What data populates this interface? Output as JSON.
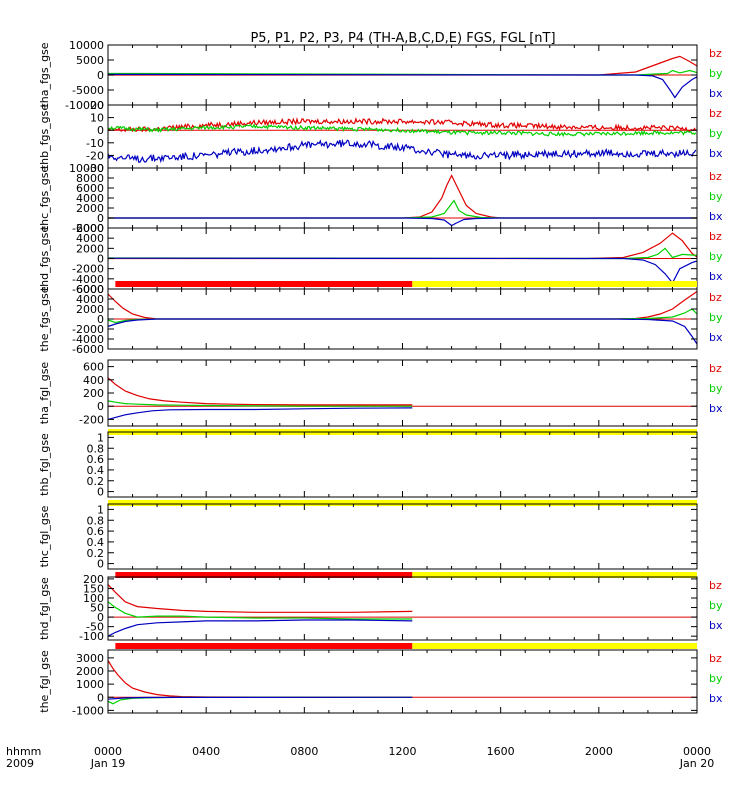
{
  "chart_data": {
    "type": "line",
    "title": "P5, P1, P2, P3, P4 (TH-A,B,C,D,E) FGS, FGL [nT]",
    "x_axis": {
      "range_hours": [
        0,
        24
      ],
      "ticks": [
        {
          "hour": 0,
          "label": "0000",
          "sublabel": "Jan 19"
        },
        {
          "hour": 4,
          "label": "0400",
          "sublabel": ""
        },
        {
          "hour": 8,
          "label": "0800",
          "sublabel": ""
        },
        {
          "hour": 12,
          "label": "1200",
          "sublabel": ""
        },
        {
          "hour": 16,
          "label": "1600",
          "sublabel": ""
        },
        {
          "hour": 20,
          "label": "2000",
          "sublabel": ""
        },
        {
          "hour": 24,
          "label": "0000",
          "sublabel": "Jan 20"
        }
      ],
      "corner_label_1": "hhmm",
      "corner_label_2": "2009"
    },
    "series_colors": {
      "bz": "#e00000",
      "by": "#00d000",
      "bx": "#0000c0"
    },
    "panels": [
      {
        "ylabel": "tha_fgs_gse",
        "ylim": [
          -10000,
          10000
        ],
        "yticks": [
          10000,
          5000,
          0,
          -5000,
          -10000
        ],
        "legend": [
          "bz",
          "by",
          "bx"
        ],
        "series": [
          {
            "name": "bz",
            "x": [
              0,
              1.4,
              20,
              21.5,
              22,
              22.5,
              23,
              23.3,
              23.7,
              24
            ],
            "y": [
              0,
              0,
              0,
              1000,
              2500,
              4000,
              5500,
              6200,
              4500,
              3000
            ]
          },
          {
            "name": "by",
            "x": [
              0,
              1.4,
              20,
              21.5,
              22.2,
              22.8,
              23,
              23.3,
              23.7,
              24
            ],
            "y": [
              500,
              500,
              0,
              0,
              300,
              500,
              1500,
              700,
              1500,
              800
            ]
          },
          {
            "name": "bx",
            "x": [
              0,
              1.4,
              20,
              21.5,
              22.2,
              22.6,
              22.9,
              23.1,
              23.4,
              23.8,
              24
            ],
            "y": [
              200,
              200,
              0,
              0,
              -300,
              -1500,
              -5000,
              -7500,
              -4000,
              -1500,
              -600
            ]
          }
        ],
        "bars": []
      },
      {
        "ylabel": "thb_fgs_gse",
        "ylim": [
          -30,
          20
        ],
        "yticks": [
          20,
          10,
          0,
          -10,
          -20,
          -30
        ],
        "legend": [
          "bz",
          "by",
          "bx"
        ],
        "series": [
          {
            "name": "bz",
            "x": [
              0,
              2,
              4,
              6,
              8,
              10,
              12,
              14,
              16,
              18,
              20,
              22,
              24
            ],
            "y": [
              0,
              1,
              4,
              6,
              7,
              7,
              7,
              6,
              4,
              3,
              2,
              2,
              1
            ],
            "noise": 2
          },
          {
            "name": "by",
            "x": [
              0,
              2,
              4,
              6,
              8,
              10,
              12,
              14,
              16,
              18,
              20,
              22,
              24
            ],
            "y": [
              2,
              0,
              2,
              3,
              2,
              1,
              0,
              -2,
              -2,
              -3,
              -3,
              -2,
              -2
            ],
            "noise": 1.5
          },
          {
            "name": "bx",
            "x": [
              0,
              1,
              2,
              4,
              6,
              8,
              10,
              12,
              14,
              16,
              18,
              20,
              22,
              24
            ],
            "y": [
              -20,
              -23,
              -22,
              -20,
              -16,
              -12,
              -10,
              -14,
              -20,
              -20,
              -19,
              -18,
              -19,
              -18
            ],
            "noise": 3
          }
        ],
        "bars": []
      },
      {
        "ylabel": "thc_fgs_gse",
        "ylim": [
          -2000,
          10000
        ],
        "yticks": [
          10000,
          8000,
          6000,
          4000,
          2000,
          0,
          -2000
        ],
        "legend": [
          "bz",
          "by",
          "bx"
        ],
        "series": [
          {
            "name": "bz",
            "x": [
              0,
              12,
              12.7,
              13.2,
              13.6,
              13.8,
              14.0,
              14.2,
              14.6,
              15.0,
              15.6,
              16.0,
              24
            ],
            "y": [
              0,
              0,
              200,
              1200,
              4000,
              6500,
              8500,
              6500,
              2500,
              900,
              200,
              0,
              0
            ]
          },
          {
            "name": "by",
            "x": [
              0,
              12,
              13.2,
              13.7,
              13.9,
              14.1,
              14.3,
              14.6,
              15.2,
              16,
              24
            ],
            "y": [
              0,
              0,
              200,
              900,
              2200,
              3500,
              1500,
              600,
              100,
              0,
              0
            ]
          },
          {
            "name": "bx",
            "x": [
              0,
              12,
              13.2,
              13.7,
              14.0,
              14.2,
              14.5,
              15,
              16,
              24
            ],
            "y": [
              0,
              0,
              -100,
              -400,
              -1500,
              -1000,
              -300,
              -100,
              0,
              0
            ]
          }
        ],
        "bars": []
      },
      {
        "ylabel": "thd_fgs_gse",
        "ylim": [
          -6000,
          6000
        ],
        "yticks": [
          6000,
          4000,
          2000,
          0,
          -2000,
          -4000,
          -6000
        ],
        "legend": [
          "bz",
          "by",
          "bx"
        ],
        "series": [
          {
            "name": "bz",
            "x": [
              0,
              1.4,
              19.5,
              21,
              21.8,
              22.5,
              23,
              23.4,
              23.8,
              24
            ],
            "y": [
              0,
              0,
              0,
              200,
              1200,
              3000,
              5000,
              3500,
              1000,
              300
            ]
          },
          {
            "name": "by",
            "x": [
              0,
              1.4,
              19.5,
              21,
              22,
              22.4,
              22.7,
              23.0,
              23.4,
              24
            ],
            "y": [
              100,
              100,
              0,
              0,
              200,
              800,
              2000,
              200,
              800,
              600
            ]
          },
          {
            "name": "bx",
            "x": [
              0,
              1.4,
              19.5,
              21,
              21.8,
              22.3,
              22.7,
              23.0,
              23.3,
              23.8,
              24
            ],
            "y": [
              50,
              50,
              0,
              0,
              -300,
              -1200,
              -3000,
              -4800,
              -2000,
              -800,
              -500
            ]
          }
        ],
        "bars": []
      },
      {
        "ylabel": "the_fgs_gse",
        "ylim": [
          -6000,
          6000
        ],
        "yticks": [
          6000,
          4000,
          2000,
          0,
          -2000,
          -4000,
          -6000
        ],
        "legend": [
          "bz",
          "by",
          "bx"
        ],
        "series": [
          {
            "name": "bz",
            "x": [
              0,
              0.3,
              0.6,
              1.0,
              1.5,
              2.0,
              20.5,
              21.5,
              22,
              22.5,
              23,
              23.5,
              24
            ],
            "y": [
              5000,
              3500,
              2200,
              1000,
              300,
              0,
              0,
              100,
              400,
              1000,
              2000,
              3800,
              5500
            ]
          },
          {
            "name": "by",
            "x": [
              0,
              0.3,
              0.7,
              1.2,
              2.0,
              20.5,
              22,
              23,
              23.5,
              23.8,
              24
            ],
            "y": [
              -200,
              -700,
              -300,
              -100,
              0,
              0,
              100,
              400,
              1200,
              2000,
              1000
            ]
          },
          {
            "name": "bx",
            "x": [
              0,
              0.3,
              0.7,
              1.2,
              2.0,
              20.5,
              22,
              23,
              23.5,
              23.8,
              24
            ],
            "y": [
              -1500,
              -1000,
              -500,
              -200,
              0,
              0,
              -100,
              -400,
              -1500,
              -3500,
              -5000
            ]
          }
        ],
        "bars": [
          {
            "row": "top",
            "color": "#ff0000",
            "from": 0.3,
            "to": 12.4
          },
          {
            "row": "top",
            "color": "#ffff00",
            "from": 12.4,
            "to": 24
          }
        ]
      },
      {
        "ylabel": "tha_fgl_gse",
        "ylim": [
          -300,
          700
        ],
        "yticks": [
          600,
          400,
          200,
          0,
          -200
        ],
        "legend": [
          "bz",
          "by",
          "bx"
        ],
        "series": [
          {
            "name": "bz",
            "x": [
              0,
              0.3,
              0.7,
              1.2,
              1.7,
              2.3,
              3.0,
              4.0,
              5.0,
              6.0,
              8.0,
              10.0,
              12.4
            ],
            "y": [
              430,
              330,
              230,
              160,
              110,
              80,
              60,
              40,
              30,
              25,
              20,
              20,
              20
            ]
          },
          {
            "name": "by",
            "x": [
              0,
              0.3,
              0.7,
              1.2,
              2.0,
              3.0,
              4.0,
              6.0,
              8.0,
              10.0,
              12.4
            ],
            "y": [
              80,
              60,
              40,
              30,
              20,
              15,
              10,
              5,
              0,
              0,
              0
            ]
          },
          {
            "name": "bx",
            "x": [
              0,
              0.3,
              0.7,
              1.2,
              1.8,
              2.5,
              4.0,
              6.0,
              8.0,
              10.0,
              12.4
            ],
            "y": [
              -200,
              -170,
              -130,
              -100,
              -70,
              -55,
              -50,
              -50,
              -40,
              -30,
              -25
            ]
          }
        ],
        "bars": [
          {
            "row": "bottom",
            "color": "#ffff00",
            "from": 0,
            "to": 24
          }
        ]
      },
      {
        "ylabel": "thb_fgl_gse",
        "ylim": [
          -0.1,
          1.1
        ],
        "yticks": [
          1.0,
          0.8,
          0.6,
          0.4,
          0.2,
          0.0
        ],
        "legend": [],
        "series": [],
        "bars": [
          {
            "row": "bottom",
            "color": "#ffff00",
            "from": 0,
            "to": 24
          }
        ]
      },
      {
        "ylabel": "thc_fgl_gse",
        "ylim": [
          -0.1,
          1.1
        ],
        "yticks": [
          1.0,
          0.8,
          0.6,
          0.4,
          0.2,
          0.0
        ],
        "legend": [],
        "series": [],
        "bars": [
          {
            "row": "bottom",
            "color": "#ff0000",
            "from": 0.3,
            "to": 12.4
          },
          {
            "row": "bottom",
            "color": "#ffff00",
            "from": 12.4,
            "to": 24
          }
        ]
      },
      {
        "ylabel": "thd_fgl_gse",
        "ylim": [
          -120,
          210
        ],
        "yticks": [
          200,
          150,
          100,
          50,
          0,
          -50,
          -100
        ],
        "legend": [
          "bz",
          "by",
          "bx"
        ],
        "series": [
          {
            "name": "bz",
            "x": [
              0,
              0.3,
              0.7,
              1.2,
              2.0,
              3.0,
              4.0,
              6.0,
              8.0,
              10.0,
              12.4
            ],
            "y": [
              170,
              130,
              80,
              55,
              45,
              35,
              30,
              25,
              25,
              25,
              30
            ]
          },
          {
            "name": "by",
            "x": [
              0,
              0.3,
              0.7,
              1.2,
              2.0,
              3.0,
              4.0,
              6.0,
              8.0,
              10.0,
              12.4
            ],
            "y": [
              80,
              50,
              20,
              0,
              5,
              5,
              0,
              -5,
              -5,
              -10,
              -10
            ]
          },
          {
            "name": "bx",
            "x": [
              0,
              0.3,
              0.7,
              1.2,
              2.0,
              3.0,
              4.0,
              6.0,
              8.0,
              10.0,
              12.4
            ],
            "y": [
              -100,
              -80,
              -60,
              -40,
              -30,
              -25,
              -20,
              -20,
              -15,
              -15,
              -20
            ]
          }
        ],
        "bars": [
          {
            "row": "bottom",
            "color": "#ff0000",
            "from": 0.3,
            "to": 12.4
          },
          {
            "row": "bottom",
            "color": "#ffff00",
            "from": 12.4,
            "to": 24
          }
        ]
      },
      {
        "ylabel": "the_fgl_gse",
        "ylim": [
          -1200,
          3600
        ],
        "yticks": [
          3000,
          2000,
          1000,
          0,
          -1000
        ],
        "legend": [
          "bz",
          "by",
          "bx"
        ],
        "series": [
          {
            "name": "bz",
            "x": [
              0,
              0.2,
              0.4,
              0.7,
              1.0,
              1.5,
              2.0,
              2.5,
              3.0,
              4.0,
              12.4
            ],
            "y": [
              2800,
              2200,
              1700,
              1100,
              700,
              400,
              200,
              100,
              50,
              20,
              0
            ]
          },
          {
            "name": "by",
            "x": [
              0,
              0.2,
              0.5,
              1.0,
              2.0,
              3.0,
              12.4
            ],
            "y": [
              -300,
              -500,
              -200,
              -80,
              -30,
              0,
              0
            ]
          },
          {
            "name": "bx",
            "x": [
              0,
              0.3,
              0.7,
              1.5,
              3.0,
              12.4
            ],
            "y": [
              -150,
              -100,
              -50,
              -20,
              -10,
              0
            ]
          }
        ],
        "bars": []
      }
    ]
  }
}
